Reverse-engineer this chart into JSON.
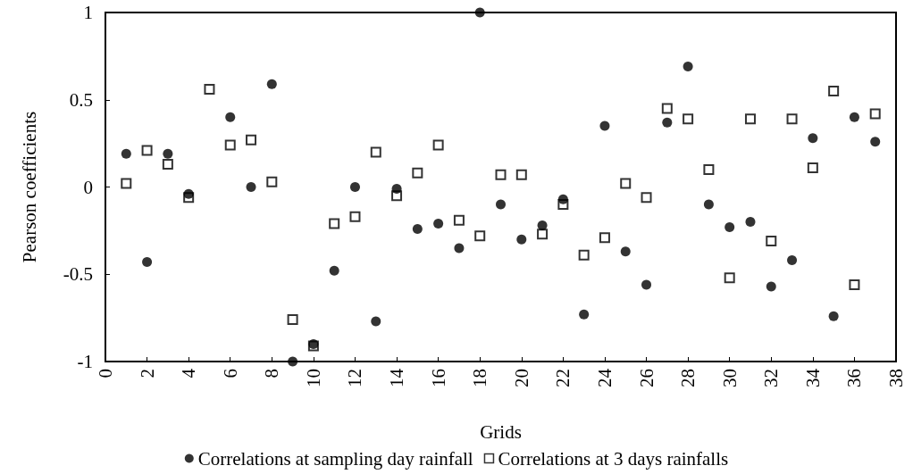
{
  "chart_data": {
    "type": "scatter",
    "xlabel": "Grids",
    "ylabel": "Pearson coefficients",
    "x": [
      1,
      2,
      3,
      4,
      5,
      6,
      7,
      8,
      9,
      10,
      11,
      12,
      13,
      14,
      15,
      16,
      17,
      18,
      19,
      20,
      21,
      22,
      23,
      24,
      25,
      26,
      27,
      28,
      29,
      30,
      31,
      32,
      33,
      34,
      35,
      36,
      37
    ],
    "series": [
      {
        "name": "Correlations at sampling day rainfall",
        "color": "#000000",
        "marker": "circle",
        "values": [
          0.19,
          -0.43,
          0.19,
          -0.04,
          null,
          0.4,
          0,
          0.59,
          -1,
          -0.9,
          -0.48,
          0,
          -0.77,
          -0.01,
          -0.24,
          -0.21,
          -0.35,
          1,
          -0.1,
          -0.3,
          -0.22,
          -0.07,
          -0.73,
          0.35,
          -0.37,
          -0.56,
          0.37,
          0.69,
          -0.1,
          -0.23,
          -0.2,
          -0.57,
          -0.42,
          0.28,
          -0.74,
          0.4,
          0.26
        ]
      },
      {
        "name": "Correlations at 3 days rainfalls",
        "color": "#000000",
        "marker": "square",
        "values": [
          0.02,
          0.21,
          0.13,
          -0.06,
          0.56,
          0.24,
          0.27,
          0.03,
          -0.76,
          -0.91,
          -0.21,
          -0.17,
          0.2,
          -0.05,
          0.08,
          0.24,
          -0.19,
          -0.28,
          0.07,
          0.07,
          -0.27,
          -0.1,
          -0.39,
          -0.29,
          0.02,
          -0.06,
          0.45,
          0.39,
          0.1,
          -0.52,
          0.39,
          -0.31,
          0.39,
          0.11,
          0.55,
          -0.56,
          0.42
        ]
      }
    ],
    "xlim": [
      0,
      38
    ],
    "xticks": [
      0,
      2,
      4,
      6,
      8,
      10,
      12,
      14,
      16,
      18,
      20,
      22,
      24,
      26,
      28,
      30,
      32,
      34,
      36,
      38
    ],
    "ylim": [
      -1,
      1
    ],
    "yticks": [
      -1,
      -0.5,
      0,
      0.5,
      1
    ],
    "grid": false,
    "legend": "bottom"
  }
}
